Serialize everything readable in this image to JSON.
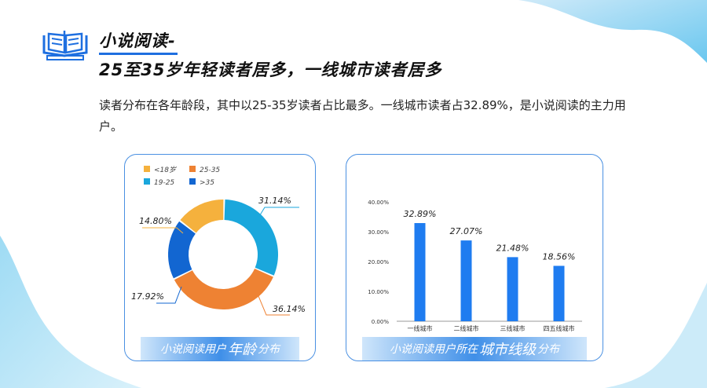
{
  "header": {
    "title_line1": "小说阅读-",
    "title_line2": "25至35岁年轻读者居多，一线城市读者居多",
    "description": "读者分布在各年龄段，其中以25-35岁读者占比最多。一线城市读者占32.89%，是小说阅读的主力用户。"
  },
  "colors": {
    "accent": "#1e6fe0",
    "yellow": "#f5b13d",
    "orange": "#ee8233",
    "cyan": "#1aa7dc",
    "blue": "#1266d1",
    "bar": "#1f7cf0"
  },
  "icons": {
    "logo": "open-book-icon"
  },
  "charts": {
    "age": {
      "banner_small1": "小说阅读用户",
      "banner_big": "年龄",
      "banner_small2": "分布"
    },
    "city": {
      "banner_small1": "小说阅读用户所在",
      "banner_big": "城市线级",
      "banner_small2": "分布"
    }
  },
  "chart_data": [
    {
      "type": "pie",
      "legend_placement": "top-left",
      "slices": [
        {
          "label": "25-35",
          "value": 36.14,
          "value_label": "36.14%",
          "color": "#ee8233"
        },
        {
          "label": ">35",
          "value": 17.92,
          "value_label": "17.92%",
          "color": "#1266d1"
        },
        {
          "label": "<18岁",
          "value": 14.8,
          "value_label": "14.80%",
          "color": "#f5b13d"
        },
        {
          "label": "19-25",
          "value": 31.14,
          "value_label": "31.14%",
          "color": "#1aa7dc"
        }
      ],
      "legend": [
        "<18岁",
        "25-35",
        "19-25",
        ">35"
      ]
    },
    {
      "type": "bar",
      "categories": [
        "一线城市",
        "二线城市",
        "三线城市",
        "四五线城市"
      ],
      "values": [
        32.89,
        27.07,
        21.48,
        18.56
      ],
      "value_labels": [
        "32.89%",
        "27.07%",
        "21.48%",
        "18.56%"
      ],
      "ylim": [
        0,
        40
      ],
      "yticks": [
        "0.00%",
        "10.00%",
        "20.00%",
        "30.00%",
        "40.00%"
      ],
      "color": "#1f7cf0"
    }
  ]
}
